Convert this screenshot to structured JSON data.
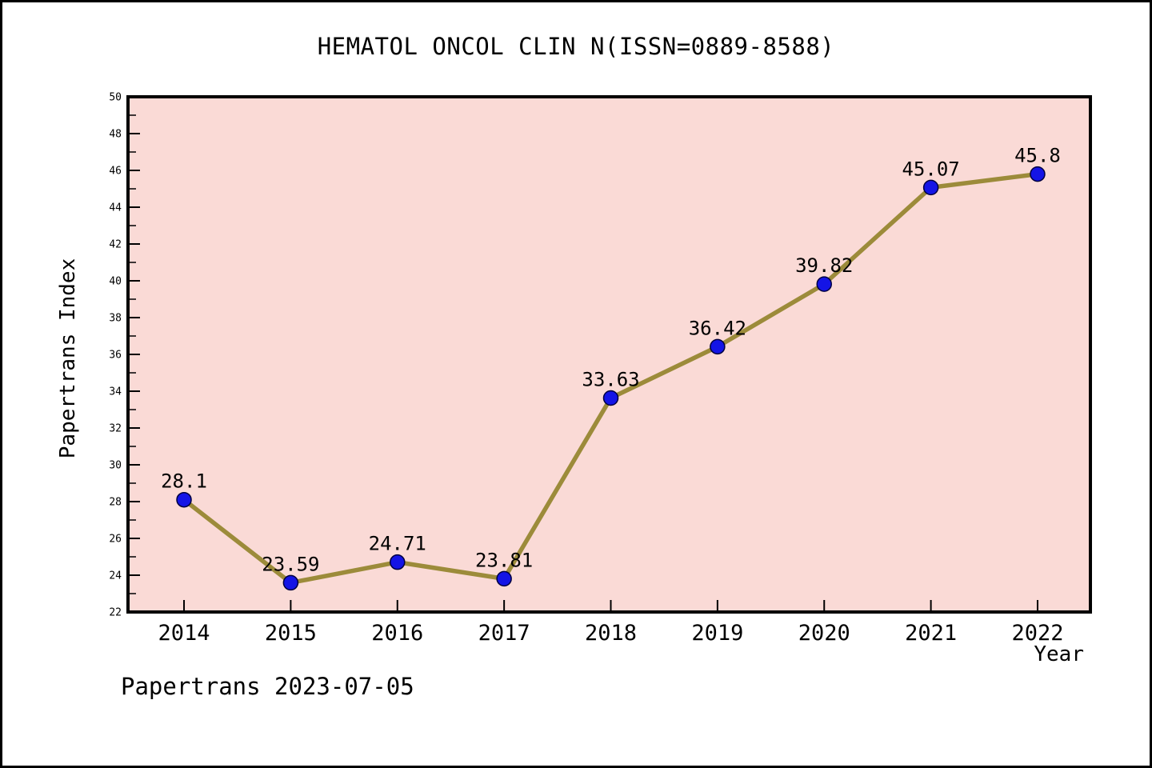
{
  "page": {
    "footer": "Papertrans 2023-07-05"
  },
  "chart_data": {
    "type": "line",
    "title": "HEMATOL ONCOL CLIN N(ISSN=0889-8588)",
    "xlabel": "Year",
    "ylabel": "Papertrans Index",
    "x": [
      2014,
      2015,
      2016,
      2017,
      2018,
      2019,
      2020,
      2021,
      2022
    ],
    "values": [
      28.1,
      23.59,
      24.71,
      23.81,
      33.63,
      36.42,
      39.82,
      45.07,
      45.8
    ],
    "point_labels": [
      "28.1",
      "23.59",
      "24.71",
      "23.81",
      "33.63",
      "36.42",
      "39.82",
      "45.07",
      "45.8"
    ],
    "xlim": [
      2013.475,
      2022.495
    ],
    "ylim": [
      22,
      50
    ],
    "ytick_step": 2,
    "yminor_step": 1,
    "grid": false,
    "legend_position": "none",
    "colors": {
      "plot_bg": "#fadad6",
      "line": "#9c8b3a",
      "marker": "#1414e6",
      "marker_edge": "#000040",
      "axis": "#000000",
      "text": "#000000"
    }
  }
}
